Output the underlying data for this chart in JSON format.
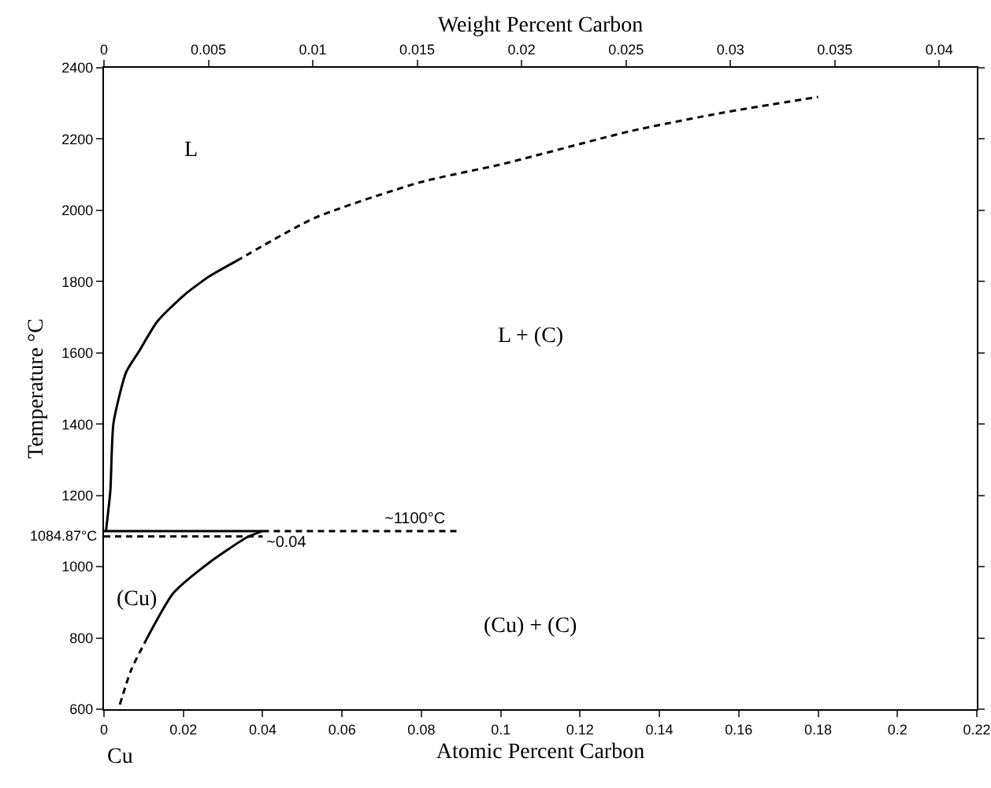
{
  "chart_data": {
    "type": "line",
    "xlabel": "Atomic Percent Carbon",
    "x2label": "Weight Percent Carbon",
    "ylabel": "Temperature °C",
    "xlim": [
      0,
      0.22
    ],
    "xticks": [
      0,
      0.02,
      0.04,
      0.06,
      0.08,
      0.1,
      0.12,
      0.14,
      0.16,
      0.18,
      0.2,
      0.22
    ],
    "x2lim": [
      0,
      0.0418
    ],
    "x2ticks": [
      0,
      0.005,
      0.01,
      0.015,
      0.02,
      0.025,
      0.03,
      0.035,
      0.04
    ],
    "ylim": [
      600,
      2400
    ],
    "yticks": [
      600,
      800,
      1000,
      1200,
      1400,
      1600,
      1800,
      2000,
      2200,
      2400
    ],
    "grid": false,
    "marker": "none",
    "series": [
      {
        "color": "#000000",
        "line_style": "solid",
        "x": [
          0.0005,
          0.0016,
          0.0024,
          0.0056,
          0.0087,
          0.0135,
          0.0203,
          0.0266,
          0.0334
        ],
        "values": [
          1100,
          1212,
          1403,
          1546,
          1602,
          1689,
          1763,
          1815,
          1858
        ]
      },
      {
        "color": "#000000",
        "line_style": "dashed",
        "x": [
          0.0334,
          0.0532,
          0.0798,
          0.1009,
          0.1326,
          0.156,
          0.18
        ],
        "values": [
          1858,
          1979,
          2079,
          2131,
          2222,
          2274,
          2318
        ]
      },
      {
        "color": "#000000",
        "line_style": "solid",
        "x": [
          0.0107,
          0.0175,
          0.0266,
          0.036,
          0.04
        ],
        "values": [
          796,
          926,
          1012,
          1082,
          1100
        ]
      },
      {
        "color": "#000000",
        "line_style": "dashed",
        "x": [
          0.004,
          0.0068,
          0.0107
        ],
        "values": [
          613,
          709,
          796
        ]
      },
      {
        "color": "#000000",
        "line_style": "solid",
        "x": [
          0,
          0.04
        ],
        "values": [
          1100,
          1100
        ]
      },
      {
        "color": "#000000",
        "line_style": "dashed",
        "x": [
          0.04,
          0.09
        ],
        "values": [
          1100,
          1100
        ]
      },
      {
        "color": "#000000",
        "line_style": "dashed",
        "x": [
          0,
          0.04
        ],
        "values": [
          1084.87,
          1084.87
        ]
      }
    ],
    "annotations": [
      "L",
      "L + (C)",
      "(Cu) + (C)",
      "(Cu)",
      "Cu",
      {
        "text": "~1100°C",
        "x": 0.07,
        "y": 1100
      },
      {
        "text": "~0.04",
        "x": 0.04,
        "y": 1100
      },
      {
        "text": "1084.87°C",
        "x": 0,
        "y": 1084.87
      }
    ]
  }
}
